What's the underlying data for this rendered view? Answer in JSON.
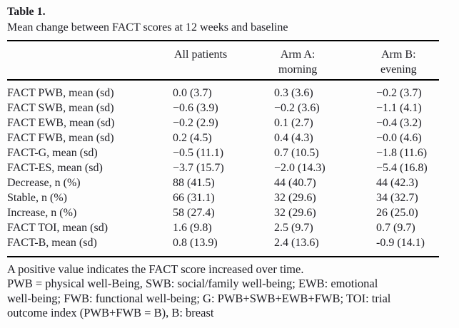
{
  "page": {
    "label": "Table 1.",
    "caption": "Mean change between FACT scores at 12 weeks and baseline"
  },
  "table": {
    "col_headers": {
      "all_patients": {
        "line1": "All patients",
        "line2": ""
      },
      "arm_a": {
        "line1": "Arm A:",
        "line2": "morning"
      },
      "arm_b": {
        "line1": "Arm B:",
        "line2": "evening"
      }
    },
    "rows": [
      {
        "label": "FACT PWB, mean (sd)",
        "all": "0.0 (3.7)",
        "arm_a": "0.3 (3.6)",
        "arm_b": "−0.2 (3.7)"
      },
      {
        "label": "FACT SWB, mean (sd)",
        "all": "−0.6 (3.9)",
        "arm_a": "−0.2 (3.6)",
        "arm_b": "−1.1 (4.1)"
      },
      {
        "label": "FACT EWB, mean (sd)",
        "all": "−0.2 (2.9)",
        "arm_a": "0.1 (2.7)",
        "arm_b": "−0.4 (3.2)"
      },
      {
        "label": "FACT FWB, mean (sd)",
        "all": "0.2 (4.5)",
        "arm_a": "0.4 (4.3)",
        "arm_b": "−0.0 (4.6)"
      },
      {
        "label": "FACT-G, mean (sd)",
        "all": "−0.5 (11.1)",
        "arm_a": "0.7 (10.5)",
        "arm_b": "−1.8 (11.6)"
      },
      {
        "label": "FACT-ES, mean (sd)",
        "all": "−3.7 (15.7)",
        "arm_a": "−2.0 (14.3)",
        "arm_b": "−5.4 (16.8)"
      },
      {
        "label": "Decrease, n (%)",
        "all": "88 (41.5)",
        "arm_a": "44 (40.7)",
        "arm_b": "44 (42.3)"
      },
      {
        "label": "Stable, n (%)",
        "all": "66 (31.1)",
        "arm_a": "32 (29.6)",
        "arm_b": "34 (32.7)"
      },
      {
        "label": "Increase, n (%)",
        "all": "58 (27.4)",
        "arm_a": "32 (29.6)",
        "arm_b": "26 (25.0)"
      },
      {
        "label": "FACT TOI, mean (sd)",
        "all": "1.6 (9.8)",
        "arm_a": "2.5 (9.7)",
        "arm_b": "0.7 (9.7)"
      },
      {
        "label": "FACT-B, mean (sd)",
        "all": "0.8 (13.9)",
        "arm_a": "2.4 (13.6)",
        "arm_b": "-0.9 (14.1)"
      }
    ],
    "footnotes": [
      "A positive value indicates the FACT score increased over time.",
      "PWB = physical well-Being, SWB: social/family well-being; EWB: emotional",
      "well-being; FWB: functional well-being; G: PWB+SWB+EWB+FWB; TOI: trial",
      "outcome index (PWB+FWB = B), B: breast"
    ]
  },
  "colors": {
    "text": "#1e1e24",
    "rule": "#000000",
    "background": "#fdfdfd"
  }
}
